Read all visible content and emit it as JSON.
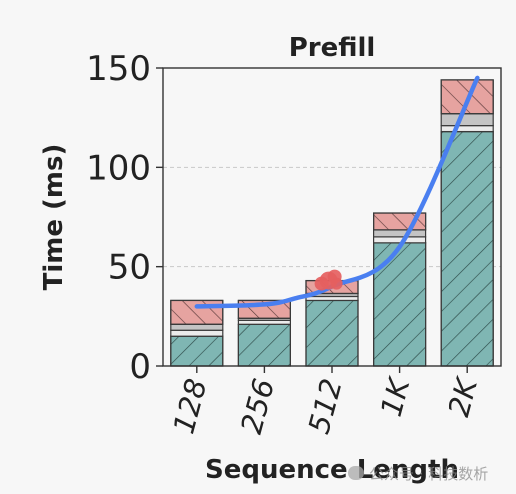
{
  "chart_data": {
    "type": "bar",
    "title": "Prefill",
    "xlabel": "Sequence Length",
    "ylabel": "Time (ms)",
    "categories": [
      "128",
      "256",
      "512",
      "1K",
      "2K"
    ],
    "ylim": [
      0,
      150
    ],
    "yticks": [
      0,
      50,
      100,
      150
    ],
    "grid": "horizontal dashed",
    "stack_segments": [
      {
        "name": "",
        "color": "#7fb6b3",
        "hatch": "diagonal",
        "values": [
          15,
          21,
          33,
          62,
          118
        ]
      },
      {
        "name": "",
        "color": "#ebebeb",
        "hatch": "none",
        "values": [
          3,
          2,
          2,
          3,
          3
        ]
      },
      {
        "name": "",
        "color": "#c4c4c4",
        "hatch": "none",
        "values": [
          3,
          1,
          1.5,
          3.5,
          6
        ]
      },
      {
        "name": "",
        "color": "#e6a3a0",
        "hatch": "backslash",
        "values": [
          12,
          9,
          6.5,
          8.5,
          17
        ]
      }
    ],
    "line": {
      "name": "",
      "color": "#4a7ff0",
      "x": [
        0,
        1,
        1.45,
        2,
        3,
        4.15
      ],
      "y": [
        30,
        31,
        34,
        40,
        60,
        145
      ]
    },
    "marker": {
      "color": "#e56060",
      "x": 1.95,
      "y": 43
    }
  },
  "watermark": {
    "text": "公众号 · 科技数析"
  }
}
